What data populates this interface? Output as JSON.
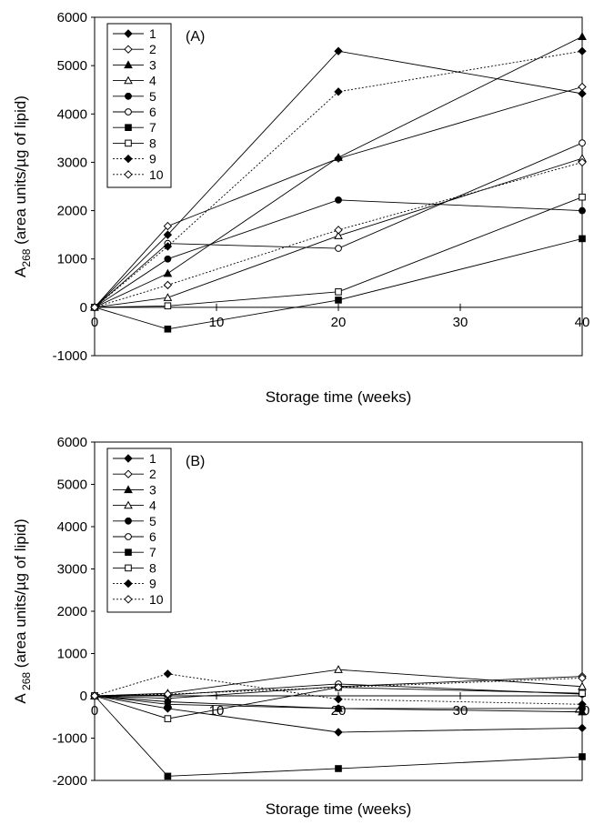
{
  "chart_data": [
    {
      "type": "line",
      "title": "(A)",
      "xlabel": "Storage time (weeks)",
      "ylabel_prefix": "A",
      "ylabel_sub": "268",
      "ylabel_rest": " (area units/µg of lipid)",
      "xlim": [
        0,
        40
      ],
      "ylim": [
        -1000,
        6000
      ],
      "xticks": [
        "0",
        "10",
        "20",
        "30",
        "40"
      ],
      "yticks": [
        "6000",
        "5000",
        "4000",
        "3000",
        "2000",
        "1000",
        "0",
        "-1000"
      ],
      "grid": false,
      "legend_position": "top-left",
      "x": [
        0,
        6,
        20,
        40
      ],
      "series": [
        {
          "name": "1",
          "marker": "diamond-filled",
          "dashed": false,
          "values": [
            0,
            1500,
            5300,
            4420
          ]
        },
        {
          "name": "2",
          "marker": "diamond-open",
          "dashed": false,
          "values": [
            0,
            1680,
            3080,
            4560
          ]
        },
        {
          "name": "3",
          "marker": "triangle-filled",
          "dashed": false,
          "values": [
            0,
            700,
            3100,
            5600
          ]
        },
        {
          "name": "4",
          "marker": "triangle-open",
          "dashed": false,
          "values": [
            0,
            200,
            1480,
            3080
          ]
        },
        {
          "name": "5",
          "marker": "circle-filled",
          "dashed": false,
          "values": [
            0,
            1000,
            2220,
            2000
          ]
        },
        {
          "name": "6",
          "marker": "circle-open",
          "dashed": false,
          "values": [
            0,
            1320,
            1220,
            3400
          ]
        },
        {
          "name": "7",
          "marker": "square-filled",
          "dashed": false,
          "values": [
            0,
            -450,
            150,
            1420
          ]
        },
        {
          "name": "8",
          "marker": "square-open",
          "dashed": false,
          "values": [
            0,
            30,
            320,
            2280
          ]
        },
        {
          "name": "9",
          "marker": "diamond-filled",
          "dashed": true,
          "values": [
            0,
            1260,
            4460,
            5300
          ]
        },
        {
          "name": "10",
          "marker": "diamond-open",
          "dashed": true,
          "values": [
            0,
            460,
            1600,
            3000
          ]
        }
      ]
    },
    {
      "type": "line",
      "title": "(B)",
      "xlabel": "Storage time (weeks)",
      "ylabel_prefix": "A",
      "ylabel_sub": " 268",
      "ylabel_rest": " (area units/µg of lipid)",
      "xlim": [
        0,
        40
      ],
      "ylim": [
        -2000,
        6000
      ],
      "xticks": [
        "0",
        "10",
        "20",
        "30",
        "40"
      ],
      "yticks": [
        "6000",
        "5000",
        "4000",
        "3000",
        "2000",
        "1000",
        "0",
        "-1000",
        "-2000"
      ],
      "grid": false,
      "legend_position": "top-left",
      "x": [
        0,
        6,
        20,
        40
      ],
      "series": [
        {
          "name": "1",
          "marker": "diamond-filled",
          "dashed": false,
          "values": [
            0,
            -300,
            -860,
            -760
          ]
        },
        {
          "name": "2",
          "marker": "diamond-open",
          "dashed": false,
          "values": [
            0,
            -60,
            220,
            460
          ]
        },
        {
          "name": "3",
          "marker": "triangle-filled",
          "dashed": false,
          "values": [
            0,
            -200,
            -300,
            -380
          ]
        },
        {
          "name": "4",
          "marker": "triangle-open",
          "dashed": false,
          "values": [
            0,
            60,
            620,
            220
          ]
        },
        {
          "name": "5",
          "marker": "circle-filled",
          "dashed": false,
          "values": [
            0,
            -140,
            -300,
            -300
          ]
        },
        {
          "name": "6",
          "marker": "circle-open",
          "dashed": false,
          "values": [
            0,
            20,
            280,
            40
          ]
        },
        {
          "name": "7",
          "marker": "square-filled",
          "dashed": false,
          "values": [
            0,
            -1900,
            -1720,
            -1440
          ]
        },
        {
          "name": "8",
          "marker": "square-open",
          "dashed": false,
          "values": [
            0,
            -540,
            200,
            60
          ]
        },
        {
          "name": "9",
          "marker": "diamond-filled",
          "dashed": true,
          "values": [
            0,
            520,
            -80,
            -200
          ]
        },
        {
          "name": "10",
          "marker": "diamond-open",
          "dashed": true,
          "values": [
            0,
            40,
            200,
            420
          ]
        }
      ]
    }
  ]
}
